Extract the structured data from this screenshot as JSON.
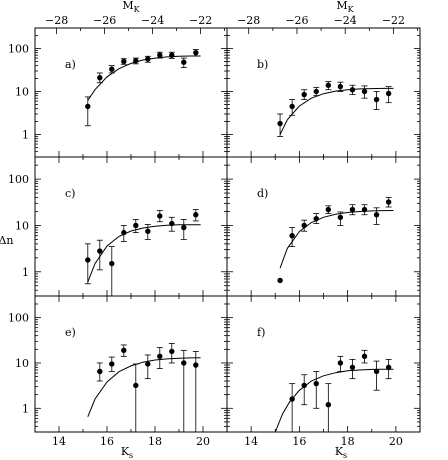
{
  "chart_data": {
    "type": "scatter",
    "x_log": false,
    "y_log": true,
    "xlim": [
      13,
      21
    ],
    "ylim": [
      0.3,
      300
    ],
    "top_xlim": [
      -28.9,
      -20.9
    ],
    "x_ticks": [
      14,
      16,
      18,
      20
    ],
    "x_tick_labels": [
      "14",
      "16",
      "18",
      "20"
    ],
    "top_ticks": [
      -28,
      -26,
      -24,
      -22
    ],
    "top_tick_labels": [
      "−28",
      "−26",
      "−24",
      "−22"
    ],
    "y_ticks": [
      1,
      10,
      100
    ],
    "y_tick_labels": [
      "1",
      "10",
      "100"
    ],
    "xlabel": "K",
    "xlabel_sub": "s",
    "top_xlabel": "M",
    "top_xlabel_sub": "K",
    "ylabel": "Δn",
    "panels": [
      {
        "label": "a)",
        "points": [
          {
            "x": 15.2,
            "y": 4.5,
            "lo": 1.6,
            "hi": 7.5
          },
          {
            "x": 15.7,
            "y": 21,
            "lo": 16,
            "hi": 27
          },
          {
            "x": 16.2,
            "y": 33,
            "lo": 27,
            "hi": 40
          },
          {
            "x": 16.7,
            "y": 50,
            "lo": 43,
            "hi": 58
          },
          {
            "x": 17.2,
            "y": 52,
            "lo": 44,
            "hi": 60
          },
          {
            "x": 17.7,
            "y": 57,
            "lo": 48,
            "hi": 66
          },
          {
            "x": 18.2,
            "y": 70,
            "lo": 60,
            "hi": 82
          },
          {
            "x": 18.7,
            "y": 70,
            "lo": 59,
            "hi": 82
          },
          {
            "x": 19.2,
            "y": 48,
            "lo": 36,
            "hi": 60
          },
          {
            "x": 19.7,
            "y": 80,
            "lo": 67,
            "hi": 95
          }
        ],
        "curve": {
          "x": [
            15.2,
            15.5,
            16.0,
            16.5,
            17.0,
            17.5,
            18.0,
            18.5,
            19.0,
            19.5,
            19.9
          ],
          "y": [
            6.2,
            11,
            22,
            34,
            45,
            54,
            60,
            64,
            66,
            67,
            67
          ]
        }
      },
      {
        "label": "b)",
        "points": [
          {
            "x": 15.2,
            "y": 1.8,
            "lo": 0.9,
            "hi": 3.0
          },
          {
            "x": 15.7,
            "y": 4.5,
            "lo": 2.8,
            "hi": 6.5
          },
          {
            "x": 16.2,
            "y": 8.5,
            "lo": 6.5,
            "hi": 11
          },
          {
            "x": 16.7,
            "y": 10,
            "lo": 8,
            "hi": 12.5
          },
          {
            "x": 17.2,
            "y": 14,
            "lo": 11,
            "hi": 17
          },
          {
            "x": 17.7,
            "y": 13,
            "lo": 10,
            "hi": 16.5
          },
          {
            "x": 18.2,
            "y": 11,
            "lo": 8.5,
            "hi": 14
          },
          {
            "x": 18.7,
            "y": 10,
            "lo": 7,
            "hi": 13.5
          },
          {
            "x": 19.2,
            "y": 6.5,
            "lo": 3.8,
            "hi": 10
          },
          {
            "x": 19.7,
            "y": 9,
            "lo": 5.5,
            "hi": 13
          }
        ],
        "curve": {
          "x": [
            15.2,
            15.5,
            16.0,
            16.5,
            17.0,
            17.5,
            18.0,
            18.5,
            19.0,
            19.5,
            19.9
          ],
          "y": [
            1.0,
            2.2,
            4.6,
            7.0,
            8.9,
            10.2,
            11,
            11.5,
            11.7,
            11.8,
            11.8
          ]
        }
      },
      {
        "label": "c)",
        "points": [
          {
            "x": 15.2,
            "y": 1.8,
            "lo": 0.55,
            "hi": 4.0
          },
          {
            "x": 15.7,
            "y": 2.8,
            "lo": 1.1,
            "hi": 4.8
          },
          {
            "x": 16.2,
            "y": 1.5,
            "lo": 0.3,
            "hi": 3.5
          },
          {
            "x": 16.7,
            "y": 7,
            "lo": 4.5,
            "hi": 10
          },
          {
            "x": 17.2,
            "y": 10,
            "lo": 7,
            "hi": 13.5
          },
          {
            "x": 17.7,
            "y": 7.5,
            "lo": 5,
            "hi": 10.5
          },
          {
            "x": 18.2,
            "y": 16,
            "lo": 12,
            "hi": 21
          },
          {
            "x": 18.7,
            "y": 11,
            "lo": 7.5,
            "hi": 15
          },
          {
            "x": 19.2,
            "y": 9,
            "lo": 5,
            "hi": 13.5
          },
          {
            "x": 19.7,
            "y": 17,
            "lo": 12.5,
            "hi": 22
          }
        ],
        "curve": {
          "x": [
            15.2,
            15.5,
            16.0,
            16.5,
            17.0,
            17.5,
            18.0,
            18.5,
            19.0,
            19.5,
            19.9
          ],
          "y": [
            0.6,
            1.5,
            3.6,
            5.8,
            7.6,
            8.8,
            9.6,
            10.1,
            10.3,
            10.4,
            10.4
          ]
        }
      },
      {
        "label": "d)",
        "points": [
          {
            "x": 15.2,
            "y": 0.65,
            "lo": 0.65,
            "hi": 0.65
          },
          {
            "x": 15.7,
            "y": 6,
            "lo": 3.5,
            "hi": 9
          },
          {
            "x": 16.2,
            "y": 10,
            "lo": 7.5,
            "hi": 13
          },
          {
            "x": 16.7,
            "y": 14,
            "lo": 11,
            "hi": 18
          },
          {
            "x": 17.2,
            "y": 22,
            "lo": 18,
            "hi": 26.5
          },
          {
            "x": 17.7,
            "y": 15,
            "lo": 10,
            "hi": 19.5
          },
          {
            "x": 18.2,
            "y": 22,
            "lo": 17,
            "hi": 28
          },
          {
            "x": 18.7,
            "y": 22,
            "lo": 17,
            "hi": 28
          },
          {
            "x": 19.2,
            "y": 17,
            "lo": 10.5,
            "hi": 24
          },
          {
            "x": 19.7,
            "y": 32,
            "lo": 25,
            "hi": 40
          }
        ],
        "curve": {
          "x": [
            15.2,
            15.5,
            16.0,
            16.5,
            17.0,
            17.5,
            18.0,
            18.5,
            19.0,
            19.5,
            19.9
          ],
          "y": [
            1.2,
            3.2,
            7.4,
            11.6,
            15,
            17.4,
            19,
            20,
            20.6,
            20.9,
            21
          ]
        }
      },
      {
        "label": "e)",
        "points": [
          {
            "x": 15.7,
            "y": 6.5,
            "lo": 4.0,
            "hi": 10
          },
          {
            "x": 16.2,
            "y": 9.5,
            "lo": 6.5,
            "hi": 13.5
          },
          {
            "x": 16.7,
            "y": 19,
            "lo": 14,
            "hi": 25
          },
          {
            "x": 17.2,
            "y": 3.2,
            "lo": 0.3,
            "hi": 9.5
          },
          {
            "x": 17.7,
            "y": 9.5,
            "lo": 4.5,
            "hi": 15
          },
          {
            "x": 18.2,
            "y": 14,
            "lo": 7.5,
            "hi": 22
          },
          {
            "x": 18.7,
            "y": 18,
            "lo": 10,
            "hi": 27
          },
          {
            "x": 19.2,
            "y": 10,
            "lo": 0.3,
            "hi": 19
          },
          {
            "x": 19.7,
            "y": 9,
            "lo": 0.3,
            "hi": 18
          }
        ],
        "curve": {
          "x": [
            15.2,
            15.5,
            16.0,
            16.5,
            17.0,
            17.5,
            18.0,
            18.5,
            19.0,
            19.5,
            19.9
          ],
          "y": [
            0.65,
            1.6,
            3.8,
            6.4,
            8.6,
            10.4,
            11.6,
            12.3,
            12.7,
            12.9,
            13
          ]
        }
      },
      {
        "label": "f)",
        "points": [
          {
            "x": 15.7,
            "y": 1.6,
            "lo": 0.3,
            "hi": 3.5
          },
          {
            "x": 16.2,
            "y": 3.2,
            "lo": 1.2,
            "hi": 5.5
          },
          {
            "x": 16.7,
            "y": 3.5,
            "lo": 1.0,
            "hi": 6.5
          },
          {
            "x": 17.2,
            "y": 1.2,
            "lo": 0.3,
            "hi": 3.5
          },
          {
            "x": 17.7,
            "y": 10,
            "lo": 6.5,
            "hi": 14
          },
          {
            "x": 18.2,
            "y": 8,
            "lo": 4.5,
            "hi": 12
          },
          {
            "x": 18.7,
            "y": 14,
            "lo": 10,
            "hi": 19
          },
          {
            "x": 19.2,
            "y": 6.5,
            "lo": 2.5,
            "hi": 11
          },
          {
            "x": 19.7,
            "y": 8,
            "lo": 4.5,
            "hi": 12
          }
        ],
        "curve": {
          "x": [
            15.0,
            15.3,
            15.6,
            16.0,
            16.5,
            17.0,
            17.5,
            18.0,
            18.5,
            19.0,
            19.5,
            19.9
          ],
          "y": [
            0.3,
            0.75,
            1.4,
            2.5,
            4.0,
            5.2,
            6.1,
            6.7,
            7.0,
            7.2,
            7.3,
            7.3
          ]
        }
      }
    ]
  }
}
